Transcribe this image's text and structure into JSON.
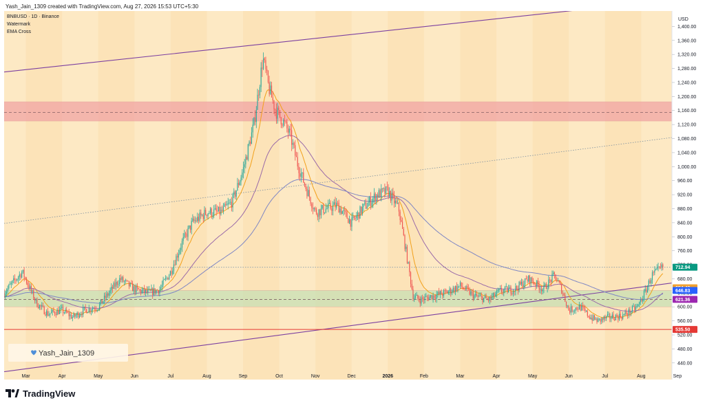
{
  "header": {
    "caption": "Yash_Jain_1309 created with TradingView.com, Aug 27, 2026 15:53 UTC+5:30"
  },
  "chart_data": {
    "type": "candlestick",
    "title": "BNBUSD · 1D · Binance",
    "indicators": [
      "Watermark",
      "EMA Cross"
    ],
    "currency": "USD",
    "watermark": "Yash_Jain_1309",
    "ylim": [
      420,
      1440
    ],
    "yticks": [
      440,
      480,
      520,
      560,
      600,
      640,
      680,
      720,
      760,
      800,
      840,
      880,
      920,
      960,
      1000,
      1040,
      1080,
      1120,
      1160,
      1200,
      1240,
      1280,
      1320,
      1360,
      1400
    ],
    "ytick_labels": [
      "440.00",
      "480.00",
      "520.00",
      "560.00",
      "600.00",
      "640.00",
      "680.00",
      "720.00",
      "760.00",
      "800.00",
      "840.00",
      "880.00",
      "920.00",
      "960.00",
      "1,000.00",
      "1,040.00",
      "1,080.00",
      "1,120.00",
      "1,160.00",
      "1,200.00",
      "1,240.00",
      "1,280.00",
      "1,320.00",
      "1,360.00",
      "1,400.00"
    ],
    "x_labels": [
      "Mar",
      "Apr",
      "May",
      "Jun",
      "Jul",
      "Aug",
      "Sep",
      "Oct",
      "Nov",
      "Dec",
      "2026",
      "Feb",
      "Mar",
      "Apr",
      "May",
      "Jun",
      "Jul",
      "Aug",
      "Sep"
    ],
    "x_label_months": [
      1,
      2,
      3,
      4,
      5,
      6,
      7,
      8,
      9,
      10,
      11,
      12,
      13,
      14,
      15,
      16,
      17,
      18,
      19
    ],
    "x_domain": [
      0.4,
      18.85
    ],
    "price_tags": [
      {
        "label": "712.94",
        "value": 712.94,
        "color": "#089981"
      },
      {
        "label": "654.40",
        "value": 654.4,
        "color": "#f0a030"
      },
      {
        "label": "646.83",
        "value": 646.83,
        "color": "#2962ff"
      },
      {
        "label": "621.36",
        "value": 621.36,
        "color": "#9c27b0"
      },
      {
        "label": "535.50",
        "value": 535.5,
        "color": "#e53935"
      }
    ],
    "zones": [
      {
        "name": "resistance",
        "from": 1130,
        "to": 1185,
        "color": "#f2a5a5",
        "midline": 1155
      },
      {
        "name": "support",
        "from": 600,
        "to": 647,
        "color": "#c8e0b4",
        "midline": 621
      }
    ],
    "horizontal_lines": [
      {
        "value": 535.5,
        "color": "#e53935"
      },
      {
        "value": 713,
        "color": "#90a4ae",
        "style": "dotted"
      }
    ],
    "channel_lines": [
      {
        "from": [
          0.4,
          1270
        ],
        "to": [
          16.1,
          1445
        ],
        "color": "#7b3fa0"
      },
      {
        "from": [
          0.4,
          415
        ],
        "to": [
          18.85,
          668
        ],
        "color": "#7b3fa0"
      },
      {
        "from": [
          0.4,
          838
        ],
        "to": [
          18.85,
          1083
        ],
        "color": "#7b8fa0",
        "style": "dotted"
      }
    ],
    "price_anchors": [
      [
        0.4,
        640
      ],
      [
        0.9,
        700
      ],
      [
        1.3,
        610
      ],
      [
        1.6,
        580
      ],
      [
        2.0,
        590
      ],
      [
        2.3,
        570
      ],
      [
        2.6,
        590
      ],
      [
        3.0,
        600
      ],
      [
        3.3,
        640
      ],
      [
        3.6,
        680
      ],
      [
        4.0,
        650
      ],
      [
        4.4,
        640
      ],
      [
        4.7,
        650
      ],
      [
        5.0,
        700
      ],
      [
        5.3,
        780
      ],
      [
        5.6,
        840
      ],
      [
        6.0,
        870
      ],
      [
        6.4,
        870
      ],
      [
        6.7,
        900
      ],
      [
        7.0,
        990
      ],
      [
        7.3,
        1120
      ],
      [
        7.55,
        1310
      ],
      [
        7.7,
        1230
      ],
      [
        7.9,
        1160
      ],
      [
        8.1,
        1130
      ],
      [
        8.3,
        1090
      ],
      [
        8.5,
        1010
      ],
      [
        8.7,
        950
      ],
      [
        9.0,
        870
      ],
      [
        9.3,
        880
      ],
      [
        9.6,
        890
      ],
      [
        10.0,
        840
      ],
      [
        10.3,
        880
      ],
      [
        10.7,
        920
      ],
      [
        11.0,
        930
      ],
      [
        11.3,
        880
      ],
      [
        11.5,
        760
      ],
      [
        11.7,
        630
      ],
      [
        11.9,
        620
      ],
      [
        12.2,
        630
      ],
      [
        12.6,
        640
      ],
      [
        13.0,
        660
      ],
      [
        13.4,
        630
      ],
      [
        13.8,
        620
      ],
      [
        14.1,
        645
      ],
      [
        14.5,
        650
      ],
      [
        14.9,
        680
      ],
      [
        15.3,
        650
      ],
      [
        15.6,
        690
      ],
      [
        15.8,
        650
      ],
      [
        16.0,
        590
      ],
      [
        16.3,
        600
      ],
      [
        16.6,
        570
      ],
      [
        16.8,
        560
      ],
      [
        17.1,
        570
      ],
      [
        17.5,
        575
      ],
      [
        17.9,
        600
      ],
      [
        18.1,
        640
      ],
      [
        18.3,
        690
      ],
      [
        18.6,
        712.94
      ]
    ]
  }
}
